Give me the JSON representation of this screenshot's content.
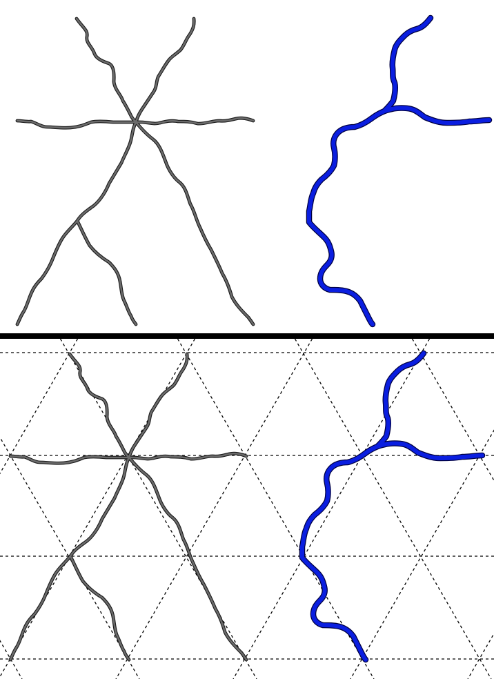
{
  "colors": {
    "background": "#ffffff",
    "gray_curve": "#6b6b6b",
    "gray_outline": "#1a1a1a",
    "blue_curve": "#0a1ee0",
    "blue_outline": "#000040",
    "divider": "#000000",
    "grid": "#000000"
  },
  "panels": [
    {
      "id": "top",
      "has_grid": false
    },
    {
      "id": "bottom",
      "has_grid": true
    }
  ],
  "figures": [
    {
      "id": "gray-star-figure",
      "color_key": "gray_curve",
      "outline_key": "gray_outline",
      "branches": 8
    },
    {
      "id": "blue-branch-figure",
      "color_key": "blue_curve",
      "outline_key": "blue_outline",
      "branches": 3
    }
  ]
}
